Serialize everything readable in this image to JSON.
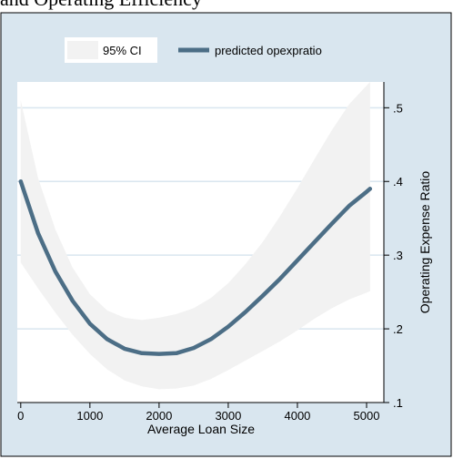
{
  "caption_fragment": "and Operating Efficiency",
  "chart_data": {
    "type": "area",
    "title": "",
    "xlabel": "Average Loan Size",
    "ylabel": "Operating Expense Ratio",
    "xlim": [
      -50,
      5250
    ],
    "ylim": [
      0.1,
      0.535
    ],
    "x_ticks": [
      0,
      1000,
      2000,
      3000,
      4000,
      5000
    ],
    "x_tick_labels": [
      "0",
      "1000",
      "2000",
      "3000",
      "4000",
      "5000"
    ],
    "y_ticks": [
      0.1,
      0.2,
      0.3,
      0.4,
      0.5
    ],
    "y_tick_labels": [
      ".1",
      ".2",
      ".3",
      ".4",
      ".5"
    ],
    "y_axis_side": "right",
    "grid": true,
    "legend_position": "top",
    "series": [
      {
        "name": "95% CI",
        "kind": "band",
        "color": "#f2f2f2",
        "x": [
          0,
          250,
          500,
          750,
          1000,
          1250,
          1500,
          1750,
          2000,
          2250,
          2500,
          2750,
          3000,
          3250,
          3500,
          3750,
          4000,
          4250,
          4500,
          4750,
          5000,
          5050
        ],
        "lower": [
          0.29,
          0.255,
          0.222,
          0.192,
          0.166,
          0.145,
          0.13,
          0.122,
          0.118,
          0.119,
          0.123,
          0.132,
          0.144,
          0.157,
          0.17,
          0.183,
          0.198,
          0.214,
          0.228,
          0.24,
          0.249,
          0.251
        ],
        "upper": [
          0.51,
          0.405,
          0.335,
          0.283,
          0.247,
          0.225,
          0.215,
          0.212,
          0.215,
          0.22,
          0.228,
          0.242,
          0.262,
          0.288,
          0.318,
          0.353,
          0.391,
          0.431,
          0.47,
          0.505,
          0.53,
          0.535
        ]
      },
      {
        "name": "predicted opexpratio",
        "kind": "line",
        "color": "#4c6e86",
        "x": [
          0,
          250,
          500,
          750,
          1000,
          1250,
          1500,
          1750,
          2000,
          2250,
          2500,
          2750,
          3000,
          3250,
          3500,
          3750,
          4000,
          4250,
          4500,
          4750,
          5000,
          5050
        ],
        "values": [
          0.4,
          0.33,
          0.278,
          0.238,
          0.207,
          0.186,
          0.173,
          0.167,
          0.166,
          0.167,
          0.174,
          0.186,
          0.203,
          0.223,
          0.245,
          0.268,
          0.293,
          0.318,
          0.343,
          0.367,
          0.386,
          0.39
        ]
      }
    ]
  }
}
